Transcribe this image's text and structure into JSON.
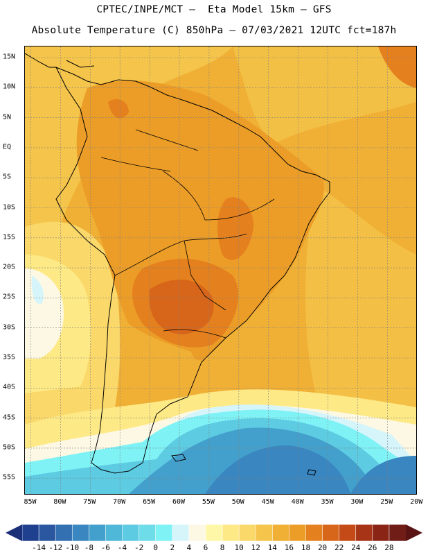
{
  "header": {
    "line1": "CPTEC/INPE/MCT –  Eta Model 15km – GFS",
    "line2": "Absolute Temperature (C) 850hPa – 07/03/2021 12UTC fct=187h"
  },
  "axes": {
    "lat_labels": [
      "15N",
      "10N",
      "5N",
      "EQ",
      "5S",
      "10S",
      "15S",
      "20S",
      "25S",
      "30S",
      "35S",
      "40S",
      "45S",
      "50S",
      "55S"
    ],
    "lon_labels": [
      "85W",
      "80W",
      "75W",
      "70W",
      "65W",
      "60W",
      "55W",
      "50W",
      "45W",
      "40W",
      "35W",
      "30W",
      "25W",
      "20W"
    ]
  },
  "colorbar": {
    "labels": [
      "-14",
      "-12",
      "-10",
      "-8",
      "-6",
      "-4",
      "-2",
      "0",
      "2",
      "4",
      "6",
      "8",
      "10",
      "12",
      "14",
      "16",
      "18",
      "20",
      "22",
      "24",
      "26",
      "28"
    ],
    "colors": [
      "#1f3f8f",
      "#2a57a0",
      "#3270b2",
      "#3a86c0",
      "#43a0cc",
      "#4fb8d8",
      "#5dcbe2",
      "#6fdcea",
      "#7ff2f6",
      "#d6f5fb",
      "#fdf8e4",
      "#fff7a8",
      "#fde986",
      "#fad86a",
      "#f4c44b",
      "#f0b035",
      "#ec9d27",
      "#e4801e",
      "#d8661a",
      "#c44a18",
      "#a73417",
      "#8a2516",
      "#6f1d16"
    ],
    "left_end_color": "#1b2f78",
    "right_end_color": "#5a1414"
  }
}
